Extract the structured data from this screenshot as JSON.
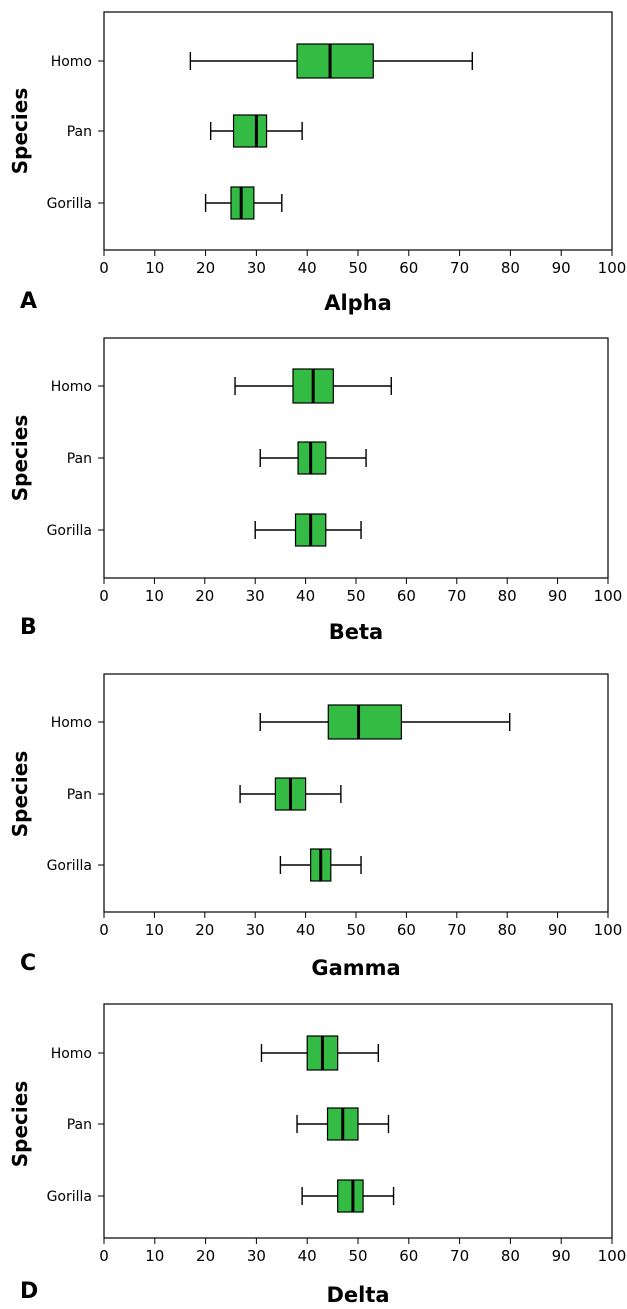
{
  "chart_data": [
    {
      "type": "boxplot",
      "panel": "A",
      "xlabel": "Alpha",
      "ylabel": "Species",
      "xlim": [
        0,
        100
      ],
      "xticks": [
        0,
        10,
        20,
        30,
        40,
        50,
        60,
        70,
        80,
        90,
        100
      ],
      "categories": [
        "Homo",
        "Pan",
        "Gorilla"
      ],
      "box_color": "#33bb44",
      "boxes": [
        {
          "category": "Homo",
          "min": 17,
          "q1": 38,
          "median": 44.5,
          "q3": 53,
          "max": 72.5
        },
        {
          "category": "Pan",
          "min": 21,
          "q1": 25.5,
          "median": 30,
          "q3": 32,
          "max": 39
        },
        {
          "category": "Gorilla",
          "min": 20,
          "q1": 25,
          "median": 27,
          "q3": 29.5,
          "max": 35
        }
      ]
    },
    {
      "type": "boxplot",
      "panel": "B",
      "xlabel": "Beta",
      "ylabel": "Species",
      "xlim": [
        0,
        100
      ],
      "xticks": [
        0,
        10,
        20,
        30,
        40,
        50,
        60,
        70,
        80,
        90,
        100
      ],
      "categories": [
        "Homo",
        "Pan",
        "Gorilla"
      ],
      "box_color": "#33bb44",
      "boxes": [
        {
          "category": "Homo",
          "min": 26,
          "q1": 37.5,
          "median": 41.5,
          "q3": 45.5,
          "max": 57
        },
        {
          "category": "Pan",
          "min": 31,
          "q1": 38.5,
          "median": 41,
          "q3": 44,
          "max": 52
        },
        {
          "category": "Gorilla",
          "min": 30,
          "q1": 38,
          "median": 41,
          "q3": 44,
          "max": 51
        }
      ]
    },
    {
      "type": "boxplot",
      "panel": "C",
      "xlabel": "Gamma",
      "ylabel": "Species",
      "xlim": [
        0,
        100
      ],
      "xticks": [
        0,
        10,
        20,
        30,
        40,
        50,
        60,
        70,
        80,
        90,
        100
      ],
      "categories": [
        "Homo",
        "Pan",
        "Gorilla"
      ],
      "box_color": "#33bb44",
      "boxes": [
        {
          "category": "Homo",
          "min": 31,
          "q1": 44.5,
          "median": 50.5,
          "q3": 59,
          "max": 80.5
        },
        {
          "category": "Pan",
          "min": 27,
          "q1": 34,
          "median": 37,
          "q3": 40,
          "max": 47
        },
        {
          "category": "Gorilla",
          "min": 35,
          "q1": 41,
          "median": 43,
          "q3": 45,
          "max": 51
        }
      ]
    },
    {
      "type": "boxplot",
      "panel": "D",
      "xlabel": "Delta",
      "ylabel": "Species",
      "xlim": [
        0,
        100
      ],
      "xticks": [
        0,
        10,
        20,
        30,
        40,
        50,
        60,
        70,
        80,
        90,
        100
      ],
      "categories": [
        "Homo",
        "Pan",
        "Gorilla"
      ],
      "box_color": "#33bb44",
      "boxes": [
        {
          "category": "Homo",
          "min": 31,
          "q1": 40,
          "median": 43,
          "q3": 46,
          "max": 54
        },
        {
          "category": "Pan",
          "min": 38,
          "q1": 44,
          "median": 47,
          "q3": 50,
          "max": 56
        },
        {
          "category": "Gorilla",
          "min": 39,
          "q1": 46,
          "median": 49,
          "q3": 51,
          "max": 57
        }
      ]
    }
  ]
}
